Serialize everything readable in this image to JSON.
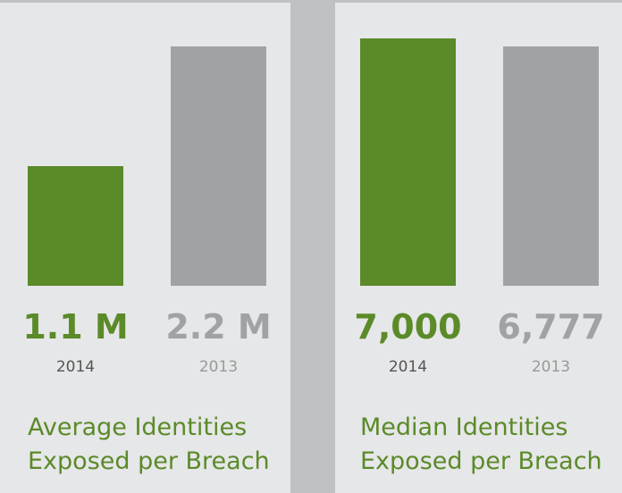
{
  "chart_data": [
    {
      "type": "bar",
      "title": "Average Identities Exposed per Breach",
      "categories": [
        "2014",
        "2013"
      ],
      "values": [
        1.1,
        2.2
      ],
      "value_labels": [
        "1.1 M",
        "2.2 M"
      ],
      "colors": [
        "#5b8a29",
        "#a1a2a5"
      ]
    },
    {
      "type": "bar",
      "title": "Median Identities Exposed per Breach",
      "categories": [
        "2014",
        "2013"
      ],
      "values": [
        7000,
        6777
      ],
      "value_labels": [
        "7,000",
        "6,777"
      ],
      "colors": [
        "#5b8a29",
        "#a1a2a5"
      ]
    }
  ]
}
